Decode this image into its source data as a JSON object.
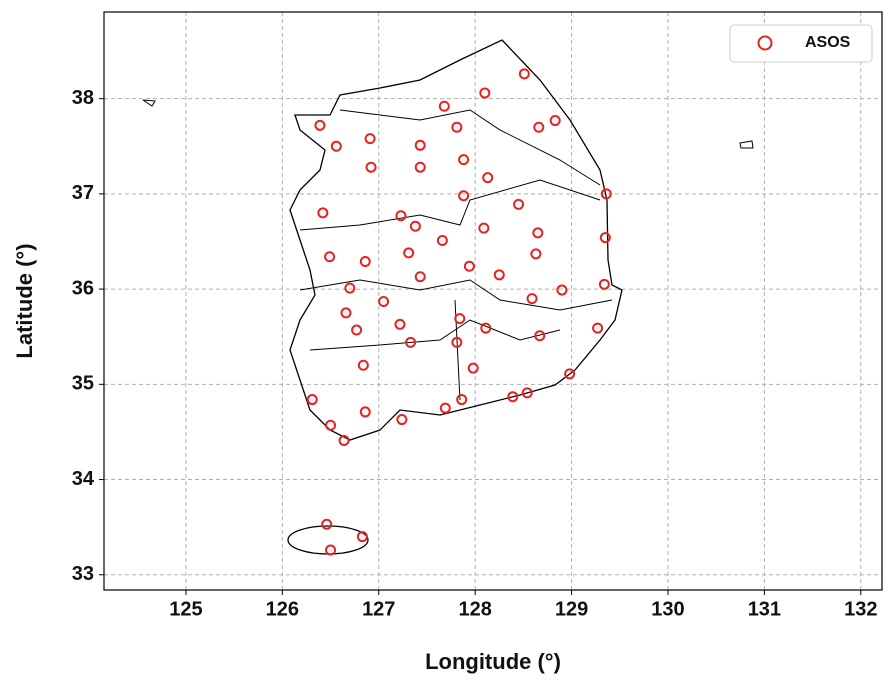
{
  "chart_data": {
    "type": "scatter",
    "xlabel": "Longitude (°)",
    "ylabel": "Latitude (°)",
    "xlim": [
      124.15,
      132.22
    ],
    "ylim": [
      32.84,
      38.91
    ],
    "xticks": [
      125,
      126,
      127,
      128,
      129,
      130,
      131,
      132
    ],
    "yticks": [
      33,
      34,
      35,
      36,
      37,
      38
    ],
    "grid": true,
    "legend": "upper right",
    "x": [
      128.51,
      128.1,
      127.68,
      126.39,
      126.56,
      126.91,
      126.92,
      127.43,
      127.43,
      127.81,
      128.66,
      128.83,
      127.88,
      128.13,
      129.36,
      127.88,
      126.42,
      127.23,
      127.38,
      128.45,
      128.09,
      127.66,
      128.65,
      129.35,
      126.49,
      126.86,
      127.31,
      128.63,
      127.43,
      127.94,
      128.25,
      129.34,
      128.9,
      126.7,
      127.05,
      128.59,
      126.66,
      127.84,
      127.22,
      126.77,
      128.11,
      129.27,
      128.67,
      127.33,
      127.81,
      126.84,
      127.98,
      128.98,
      126.31,
      127.86,
      128.39,
      128.54,
      127.69,
      126.86,
      127.24,
      126.5,
      126.64,
      126.46,
      126.83,
      126.5
    ],
    "series": [
      {
        "name": "ASOS",
        "color": "#e8221f",
        "values": [
          38.26,
          38.06,
          37.92,
          37.72,
          37.5,
          37.58,
          37.28,
          37.51,
          37.28,
          37.7,
          37.7,
          37.77,
          37.36,
          37.17,
          37.0,
          36.98,
          36.8,
          36.77,
          36.66,
          36.89,
          36.64,
          36.51,
          36.59,
          36.54,
          36.34,
          36.29,
          36.38,
          36.37,
          36.13,
          36.24,
          36.15,
          36.05,
          35.99,
          36.01,
          35.87,
          35.9,
          35.75,
          35.69,
          35.63,
          35.57,
          35.59,
          35.59,
          35.51,
          35.44,
          35.44,
          35.2,
          35.17,
          35.11,
          34.84,
          34.84,
          34.87,
          34.91,
          34.75,
          34.71,
          34.63,
          34.57,
          34.41,
          33.53,
          33.4,
          33.26
        ]
      }
    ]
  }
}
